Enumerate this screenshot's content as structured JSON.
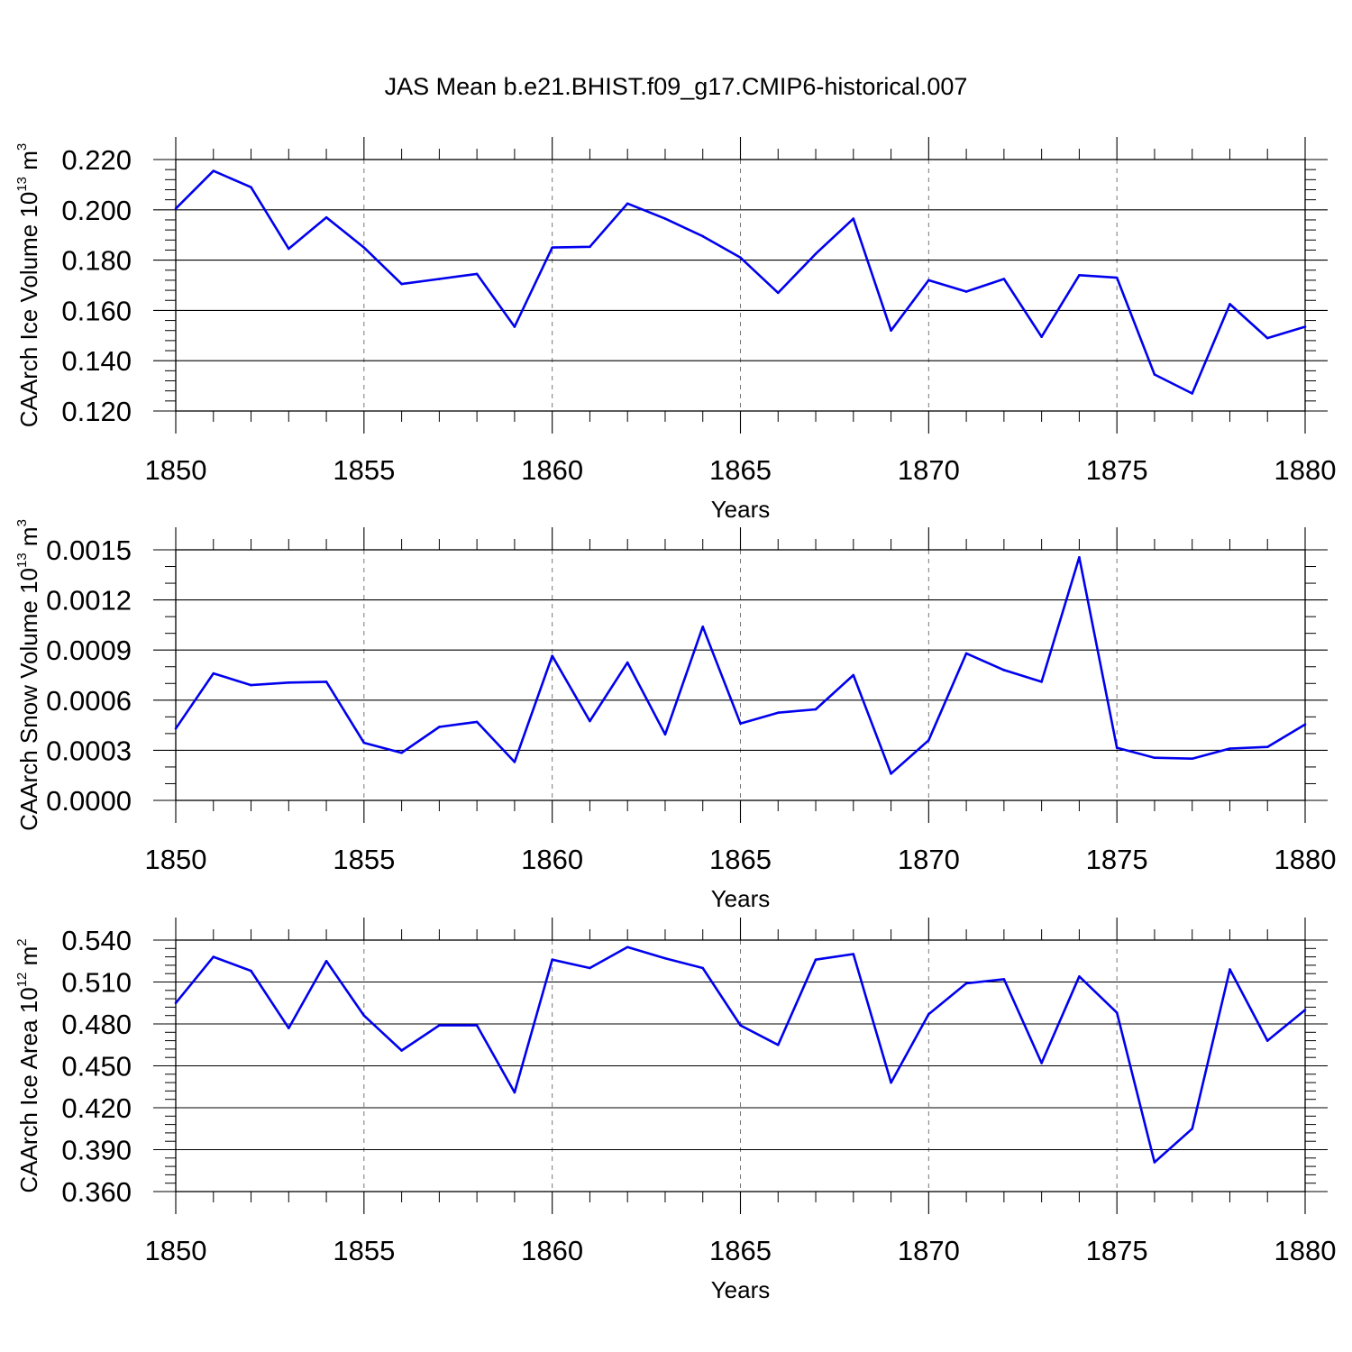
{
  "title": "JAS Mean b.e21.BHIST.f09_g17.CMIP6-historical.007",
  "series_color": "#0000ee",
  "chart_data": [
    {
      "type": "line",
      "ylabel_main": "CAArch Ice Volume 10",
      "ylabel_exp": "13",
      "ylabel_unit": "m",
      "ylabel_unit_exp": "3",
      "xlabel": "Years",
      "xlim": [
        1850,
        1880
      ],
      "ylim": [
        0.12,
        0.22
      ],
      "yticks": [
        "0.120",
        "0.140",
        "0.160",
        "0.180",
        "0.200",
        "0.220"
      ],
      "xticks": [
        "1850",
        "1855",
        "1860",
        "1865",
        "1870",
        "1875",
        "1880"
      ],
      "x": [
        1850,
        1851,
        1852,
        1853,
        1854,
        1855,
        1856,
        1857,
        1858,
        1859,
        1860,
        1861,
        1862,
        1863,
        1864,
        1865,
        1866,
        1867,
        1868,
        1869,
        1870,
        1871,
        1872,
        1873,
        1874,
        1875,
        1876,
        1877,
        1878,
        1879,
        1880
      ],
      "values": [
        0.2005,
        0.2155,
        0.209,
        0.1845,
        0.197,
        0.185,
        0.1705,
        0.1725,
        0.1745,
        0.1535,
        0.185,
        0.1853,
        0.2025,
        0.1965,
        0.1895,
        0.181,
        0.167,
        0.1825,
        0.1965,
        0.152,
        0.172,
        0.1675,
        0.1725,
        0.1495,
        0.174,
        0.173,
        0.1345,
        0.127,
        0.1625,
        0.149,
        0.1535
      ]
    },
    {
      "type": "line",
      "ylabel_main": "CAArch Snow Volume 10",
      "ylabel_exp": "13",
      "ylabel_unit": "m",
      "ylabel_unit_exp": "3",
      "xlabel": "Years",
      "xlim": [
        1850,
        1880
      ],
      "ylim": [
        0.0,
        0.0015
      ],
      "yticks": [
        "0.0000",
        "0.0003",
        "0.0006",
        "0.0009",
        "0.0012",
        "0.0015"
      ],
      "xticks": [
        "1850",
        "1855",
        "1860",
        "1865",
        "1870",
        "1875",
        "1880"
      ],
      "x": [
        1850,
        1851,
        1852,
        1853,
        1854,
        1855,
        1856,
        1857,
        1858,
        1859,
        1860,
        1861,
        1862,
        1863,
        1864,
        1865,
        1866,
        1867,
        1868,
        1869,
        1870,
        1871,
        1872,
        1873,
        1874,
        1875,
        1876,
        1877,
        1878,
        1879,
        1880
      ],
      "values": [
        0.00043,
        0.00076,
        0.00069,
        0.000705,
        0.00071,
        0.000345,
        0.000285,
        0.00044,
        0.00047,
        0.00023,
        0.000865,
        0.000475,
        0.000825,
        0.000395,
        0.00104,
        0.00046,
        0.000525,
        0.000545,
        0.00075,
        0.00016,
        0.00036,
        0.00088,
        0.00078,
        0.00071,
        0.001455,
        0.000315,
        0.000255,
        0.00025,
        0.00031,
        0.00032,
        0.000455
      ]
    },
    {
      "type": "line",
      "ylabel_main": "CAArch Ice Area 10",
      "ylabel_exp": "12",
      "ylabel_unit": "m",
      "ylabel_unit_exp": "2",
      "xlabel": "Years",
      "xlim": [
        1850,
        1880
      ],
      "ylim": [
        0.36,
        0.54
      ],
      "yticks": [
        "0.360",
        "0.390",
        "0.420",
        "0.450",
        "0.480",
        "0.510",
        "0.540"
      ],
      "xticks": [
        "1850",
        "1855",
        "1860",
        "1865",
        "1870",
        "1875",
        "1880"
      ],
      "x": [
        1850,
        1851,
        1852,
        1853,
        1854,
        1855,
        1856,
        1857,
        1858,
        1859,
        1860,
        1861,
        1862,
        1863,
        1864,
        1865,
        1866,
        1867,
        1868,
        1869,
        1870,
        1871,
        1872,
        1873,
        1874,
        1875,
        1876,
        1877,
        1878,
        1879,
        1880
      ],
      "values": [
        0.495,
        0.528,
        0.518,
        0.477,
        0.525,
        0.486,
        0.461,
        0.479,
        0.479,
        0.431,
        0.526,
        0.52,
        0.535,
        0.527,
        0.52,
        0.479,
        0.465,
        0.526,
        0.53,
        0.438,
        0.487,
        0.509,
        0.512,
        0.452,
        0.514,
        0.488,
        0.381,
        0.405,
        0.519,
        0.468,
        0.49
      ]
    }
  ]
}
